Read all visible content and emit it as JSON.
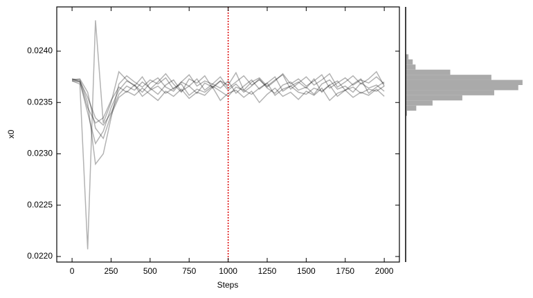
{
  "chart_data": [
    {
      "type": "line",
      "xlabel": "Steps",
      "ylabel": "x0",
      "x": [
        0,
        50,
        100,
        150,
        200,
        250,
        300,
        350,
        400,
        450,
        500,
        550,
        600,
        650,
        700,
        750,
        800,
        850,
        900,
        950,
        1000,
        1050,
        1100,
        1150,
        1200,
        1250,
        1300,
        1350,
        1400,
        1450,
        1500,
        1550,
        1600,
        1650,
        1700,
        1750,
        1800,
        1850,
        1900,
        1950,
        2000
      ],
      "alpha": 0.3,
      "series": [
        {
          "color": "#000000",
          "values": [
            0.02372,
            0.02371,
            0.02355,
            0.02335,
            0.02328,
            0.0234,
            0.02358,
            0.02366,
            0.02362,
            0.0237,
            0.02364,
            0.02358,
            0.02367,
            0.02372,
            0.02361,
            0.02366,
            0.02359,
            0.02369,
            0.02365,
            0.02371,
            0.02362,
            0.02368,
            0.0236,
            0.02366,
            0.02373,
            0.02364,
            0.02359,
            0.02367,
            0.0237,
            0.02362,
            0.02365,
            0.02358,
            0.02368,
            0.02372,
            0.02363,
            0.02366,
            0.0236,
            0.02369,
            0.02364,
            0.02367,
            0.02361
          ]
        },
        {
          "color": "#000000",
          "values": [
            0.02373,
            0.0237,
            0.0234,
            0.0231,
            0.02322,
            0.02345,
            0.02362,
            0.02371,
            0.02367,
            0.0236,
            0.02369,
            0.02374,
            0.02365,
            0.02361,
            0.0237,
            0.02366,
            0.02373,
            0.02362,
            0.02368,
            0.02364,
            0.02371,
            0.02359,
            0.02366,
            0.02372,
            0.02363,
            0.02369,
            0.02375,
            0.02361,
            0.02366,
            0.0237,
            0.02364,
            0.02373,
            0.0236,
            0.02367,
            0.02371,
            0.02362,
            0.02368,
            0.02373,
            0.02359,
            0.02365,
            0.0237
          ]
        },
        {
          "color": "#000000",
          "values": [
            0.02371,
            0.02368,
            0.02207,
            0.0243,
            0.0233,
            0.0235,
            0.0238,
            0.02372,
            0.02366,
            0.02375,
            0.02363,
            0.0237,
            0.02378,
            0.02368,
            0.0236,
            0.02373,
            0.02369,
            0.02376,
            0.02364,
            0.02371,
            0.02367,
            0.02379,
            0.02362,
            0.0237,
            0.02374,
            0.02366,
            0.02372,
            0.02377,
            0.02363,
            0.02369,
            0.02375,
            0.02367,
            0.02372,
            0.02378,
            0.02365,
            0.0237,
            0.02376,
            0.02368,
            0.02373,
            0.0238,
            0.02366
          ]
        },
        {
          "color": "#000000",
          "values": [
            0.02372,
            0.02373,
            0.0236,
            0.02325,
            0.02315,
            0.02338,
            0.02355,
            0.02361,
            0.02357,
            0.02364,
            0.02358,
            0.02352,
            0.02361,
            0.02356,
            0.02363,
            0.02354,
            0.0236,
            0.02357,
            0.02365,
            0.02352,
            0.02359,
            0.02362,
            0.02355,
            0.02361,
            0.0235,
            0.02358,
            0.02364,
            0.02356,
            0.0236,
            0.02353,
            0.02361,
            0.02357,
            0.02364,
            0.02352,
            0.02359,
            0.02362,
            0.02355,
            0.0236,
            0.02357,
            0.02363,
            0.02356
          ]
        },
        {
          "color": "#000000",
          "values": [
            0.02373,
            0.02372,
            0.0235,
            0.0229,
            0.023,
            0.02335,
            0.02368,
            0.02376,
            0.0237,
            0.02365,
            0.02372,
            0.02368,
            0.02374,
            0.02363,
            0.0237,
            0.02377,
            0.02366,
            0.02371,
            0.02368,
            0.02375,
            0.02364,
            0.0237,
            0.02376,
            0.02367,
            0.02372,
            0.02365,
            0.02371,
            0.02378,
            0.02368,
            0.02373,
            0.02366,
            0.02371,
            0.02377,
            0.02364,
            0.02369,
            0.02374,
            0.02367,
            0.02372,
            0.02369,
            0.02375,
            0.02368
          ]
        },
        {
          "color": "#000000",
          "values": [
            0.02371,
            0.0237,
            0.02345,
            0.0233,
            0.02335,
            0.02352,
            0.02365,
            0.0236,
            0.02367,
            0.02356,
            0.02362,
            0.02366,
            0.02359,
            0.02364,
            0.02368,
            0.02357,
            0.02363,
            0.0236,
            0.02366,
            0.02361,
            0.02356,
            0.02365,
            0.02362,
            0.02358,
            0.02364,
            0.02369,
            0.02357,
            0.02363,
            0.02366,
            0.0236,
            0.02358,
            0.02364,
            0.02361,
            0.02367,
            0.02356,
            0.02362,
            0.02365,
            0.02359,
            0.02363,
            0.02361,
            0.02366
          ]
        }
      ],
      "vline": 1000,
      "vline_color": "#dd0000",
      "xlim": [
        -98,
        2097
      ],
      "ylim": [
        0.021946,
        0.024431
      ],
      "xticks": [
        0,
        250,
        500,
        750,
        1000,
        1250,
        1500,
        1750,
        2000
      ],
      "yticks": [
        {
          "value": 0.022,
          "label": "0.0220"
        },
        0.0225,
        {
          "value": 0.023,
          "label": "0.0230"
        },
        0.0235,
        {
          "value": 0.024,
          "label": "0.0240"
        }
      ]
    },
    {
      "type": "histogram",
      "orientation": "horizontal",
      "color": "#aaaaaa",
      "bins": [
        0.02337,
        0.02342,
        0.02347,
        0.02352,
        0.02357,
        0.02362,
        0.02367,
        0.02372,
        0.02377,
        0.02382,
        0.02387,
        0.02392,
        0.02397
      ],
      "counts": [
        2,
        15,
        38,
        80,
        125,
        159,
        165,
        121,
        63,
        14,
        10,
        4
      ],
      "xlim": [
        0,
        170
      ],
      "ylim": [
        0.021946,
        0.024431
      ]
    }
  ]
}
